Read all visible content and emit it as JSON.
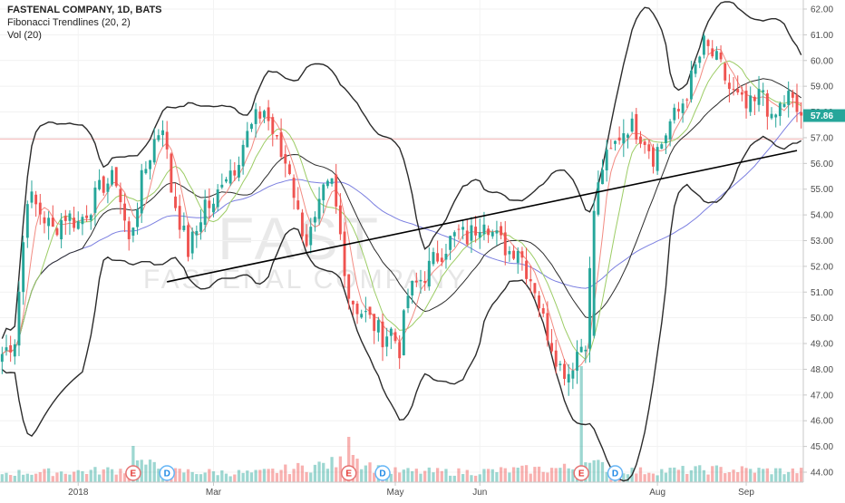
{
  "legend": {
    "title": "FASTENAL COMPANY, 1D, BATS",
    "study1": "Fibonacci Trendlines (20, 2)",
    "study2": "Vol (20)"
  },
  "watermark": {
    "ticker": "FAST",
    "company": "FASTENAL COMPANY"
  },
  "colors": {
    "up": "#26a69a",
    "down": "#ef5350",
    "band": "#2b2b2b",
    "ma_red": "#f28b82",
    "ma_green": "#9ccc65",
    "ma_blue": "#7b7fe0",
    "trendline": "#000000",
    "price_tag": "#26a69a"
  },
  "chart_data": {
    "type": "candlestick",
    "ylim": [
      44,
      62
    ],
    "y_ticks": [
      "62.00",
      "61.00",
      "60.00",
      "59.00",
      "58.00",
      "57.00",
      "56.00",
      "55.00",
      "54.00",
      "53.00",
      "52.00",
      "51.00",
      "50.00",
      "49.00",
      "48.00",
      "47.00",
      "46.00",
      "45.00",
      "44.00"
    ],
    "x_labels": [
      {
        "label": "2018",
        "index": 18
      },
      {
        "label": "Mar",
        "index": 50
      },
      {
        "label": "May",
        "index": 93
      },
      {
        "label": "Jun",
        "index": 113
      },
      {
        "label": "Aug",
        "index": 155
      },
      {
        "label": "Sep",
        "index": 176
      }
    ],
    "last_price": "57.86",
    "last_price_value": 57.86,
    "reference_price": 56.95,
    "earnings_markers": [
      {
        "label": "E",
        "index": 31,
        "kind": "earnings"
      },
      {
        "label": "D",
        "index": 39,
        "kind": "dividend"
      },
      {
        "label": "E",
        "index": 82,
        "kind": "earnings"
      },
      {
        "label": "D",
        "index": 90,
        "kind": "dividend"
      },
      {
        "label": "E",
        "index": 137,
        "kind": "earnings"
      },
      {
        "label": "D",
        "index": 145,
        "kind": "dividend"
      }
    ],
    "trendlines": [
      {
        "from": {
          "index": 39,
          "value": 51.4
        },
        "to": {
          "index": 188,
          "value": 56.5
        }
      }
    ],
    "price_anchors": [
      [
        0,
        48.6
      ],
      [
        3,
        49.2
      ],
      [
        6,
        54.8
      ],
      [
        9,
        54.1
      ],
      [
        12,
        53.4
      ],
      [
        15,
        54.0
      ],
      [
        18,
        53.7
      ],
      [
        21,
        54.4
      ],
      [
        24,
        55.2
      ],
      [
        27,
        55.4
      ],
      [
        30,
        52.9
      ],
      [
        33,
        55.3
      ],
      [
        36,
        56.9
      ],
      [
        38,
        57.6
      ],
      [
        40,
        55.0
      ],
      [
        42,
        53.8
      ],
      [
        44,
        52.6
      ],
      [
        46,
        53.4
      ],
      [
        48,
        54.5
      ],
      [
        50,
        54.2
      ],
      [
        52,
        55.5
      ],
      [
        55,
        55.9
      ],
      [
        57,
        56.8
      ],
      [
        60,
        57.7
      ],
      [
        62,
        58.1
      ],
      [
        64,
        57.2
      ],
      [
        66,
        56.3
      ],
      [
        68,
        55.8
      ],
      [
        70,
        54.0
      ],
      [
        72,
        53.0
      ],
      [
        74,
        53.6
      ],
      [
        76,
        54.8
      ],
      [
        78,
        55.2
      ],
      [
        80,
        53.2
      ],
      [
        82,
        50.9
      ],
      [
        84,
        50.4
      ],
      [
        86,
        50.1
      ],
      [
        88,
        49.7
      ],
      [
        90,
        49.3
      ],
      [
        92,
        49.5
      ],
      [
        94,
        48.8
      ],
      [
        96,
        50.9
      ],
      [
        98,
        51.3
      ],
      [
        100,
        51.7
      ],
      [
        102,
        52.2
      ],
      [
        104,
        52.6
      ],
      [
        106,
        53.0
      ],
      [
        108,
        53.3
      ],
      [
        110,
        53.1
      ],
      [
        112,
        53.5
      ],
      [
        114,
        54.0
      ],
      [
        116,
        53.3
      ],
      [
        118,
        52.9
      ],
      [
        120,
        52.6
      ],
      [
        122,
        52.8
      ],
      [
        124,
        51.9
      ],
      [
        126,
        51.2
      ],
      [
        128,
        49.9
      ],
      [
        130,
        49.0
      ],
      [
        132,
        48.1
      ],
      [
        134,
        47.9
      ],
      [
        136,
        48.7
      ],
      [
        138,
        49.2
      ],
      [
        140,
        54.2
      ],
      [
        142,
        55.9
      ],
      [
        144,
        56.4
      ],
      [
        146,
        57.1
      ],
      [
        148,
        57.5
      ],
      [
        150,
        57.3
      ],
      [
        152,
        57.0
      ],
      [
        154,
        56.3
      ],
      [
        156,
        56.8
      ],
      [
        158,
        57.6
      ],
      [
        160,
        58.0
      ],
      [
        162,
        58.8
      ],
      [
        164,
        59.7
      ],
      [
        166,
        60.6
      ],
      [
        168,
        60.2
      ],
      [
        170,
        59.7
      ],
      [
        172,
        58.9
      ],
      [
        174,
        58.5
      ],
      [
        176,
        58.1
      ],
      [
        178,
        58.3
      ],
      [
        180,
        58.9
      ],
      [
        182,
        57.5
      ],
      [
        184,
        58.2
      ],
      [
        186,
        58.6
      ],
      [
        188,
        58.0
      ],
      [
        189,
        57.86
      ]
    ],
    "volume_anchors": [
      [
        0,
        0.25
      ],
      [
        20,
        0.3
      ],
      [
        30,
        0.35
      ],
      [
        31,
        1.0
      ],
      [
        32,
        0.55
      ],
      [
        40,
        0.3
      ],
      [
        60,
        0.25
      ],
      [
        81,
        0.55
      ],
      [
        82,
        1.2
      ],
      [
        83,
        0.7
      ],
      [
        90,
        0.3
      ],
      [
        110,
        0.28
      ],
      [
        136,
        0.4
      ],
      [
        137,
        3.2
      ],
      [
        138,
        0.9
      ],
      [
        139,
        0.5
      ],
      [
        150,
        0.3
      ],
      [
        170,
        0.35
      ],
      [
        189,
        0.3
      ]
    ],
    "series": [
      {
        "name": "Fibonacci Trendlines (20, 2)"
      },
      {
        "name": "Vol (20)"
      }
    ]
  }
}
